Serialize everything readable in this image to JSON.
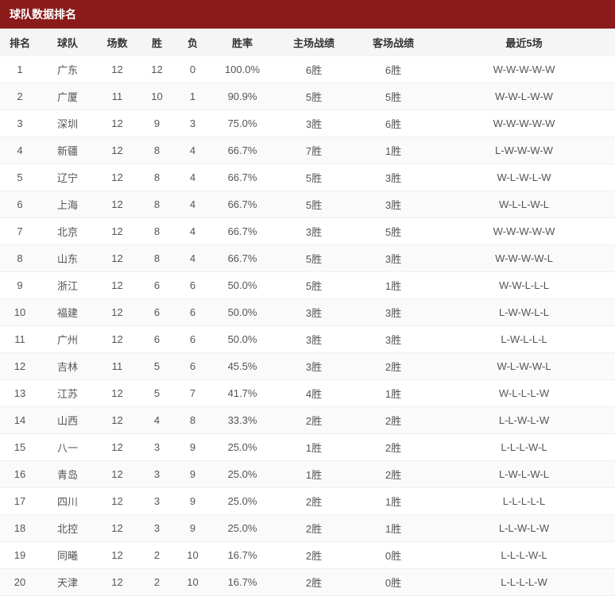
{
  "title": "球队数据排名",
  "columns": {
    "rank": "排名",
    "team": "球队",
    "games": "场数",
    "win": "胜",
    "loss": "负",
    "pct": "胜率",
    "home": "主场战绩",
    "away": "客场战绩",
    "last5": "最近5场"
  },
  "rows": [
    {
      "rank": "1",
      "team": "广东",
      "games": "12",
      "win": "12",
      "loss": "0",
      "pct": "100.0%",
      "home": "6胜",
      "away": "6胜",
      "last5": "W-W-W-W-W"
    },
    {
      "rank": "2",
      "team": "广厦",
      "games": "11",
      "win": "10",
      "loss": "1",
      "pct": "90.9%",
      "home": "5胜",
      "away": "5胜",
      "last5": "W-W-L-W-W"
    },
    {
      "rank": "3",
      "team": "深圳",
      "games": "12",
      "win": "9",
      "loss": "3",
      "pct": "75.0%",
      "home": "3胜",
      "away": "6胜",
      "last5": "W-W-W-W-W"
    },
    {
      "rank": "4",
      "team": "新疆",
      "games": "12",
      "win": "8",
      "loss": "4",
      "pct": "66.7%",
      "home": "7胜",
      "away": "1胜",
      "last5": "L-W-W-W-W"
    },
    {
      "rank": "5",
      "team": "辽宁",
      "games": "12",
      "win": "8",
      "loss": "4",
      "pct": "66.7%",
      "home": "5胜",
      "away": "3胜",
      "last5": "W-L-W-L-W"
    },
    {
      "rank": "6",
      "team": "上海",
      "games": "12",
      "win": "8",
      "loss": "4",
      "pct": "66.7%",
      "home": "5胜",
      "away": "3胜",
      "last5": "W-L-L-W-L"
    },
    {
      "rank": "7",
      "team": "北京",
      "games": "12",
      "win": "8",
      "loss": "4",
      "pct": "66.7%",
      "home": "3胜",
      "away": "5胜",
      "last5": "W-W-W-W-W"
    },
    {
      "rank": "8",
      "team": "山东",
      "games": "12",
      "win": "8",
      "loss": "4",
      "pct": "66.7%",
      "home": "5胜",
      "away": "3胜",
      "last5": "W-W-W-W-L"
    },
    {
      "rank": "9",
      "team": "浙江",
      "games": "12",
      "win": "6",
      "loss": "6",
      "pct": "50.0%",
      "home": "5胜",
      "away": "1胜",
      "last5": "W-W-L-L-L"
    },
    {
      "rank": "10",
      "team": "福建",
      "games": "12",
      "win": "6",
      "loss": "6",
      "pct": "50.0%",
      "home": "3胜",
      "away": "3胜",
      "last5": "L-W-W-L-L"
    },
    {
      "rank": "11",
      "team": "广州",
      "games": "12",
      "win": "6",
      "loss": "6",
      "pct": "50.0%",
      "home": "3胜",
      "away": "3胜",
      "last5": "L-W-L-L-L"
    },
    {
      "rank": "12",
      "team": "吉林",
      "games": "11",
      "win": "5",
      "loss": "6",
      "pct": "45.5%",
      "home": "3胜",
      "away": "2胜",
      "last5": "W-L-W-W-L"
    },
    {
      "rank": "13",
      "team": "江苏",
      "games": "12",
      "win": "5",
      "loss": "7",
      "pct": "41.7%",
      "home": "4胜",
      "away": "1胜",
      "last5": "W-L-L-L-W"
    },
    {
      "rank": "14",
      "team": "山西",
      "games": "12",
      "win": "4",
      "loss": "8",
      "pct": "33.3%",
      "home": "2胜",
      "away": "2胜",
      "last5": "L-L-W-L-W"
    },
    {
      "rank": "15",
      "team": "八一",
      "games": "12",
      "win": "3",
      "loss": "9",
      "pct": "25.0%",
      "home": "1胜",
      "away": "2胜",
      "last5": "L-L-L-W-L"
    },
    {
      "rank": "16",
      "team": "青岛",
      "games": "12",
      "win": "3",
      "loss": "9",
      "pct": "25.0%",
      "home": "1胜",
      "away": "2胜",
      "last5": "L-W-L-W-L"
    },
    {
      "rank": "17",
      "team": "四川",
      "games": "12",
      "win": "3",
      "loss": "9",
      "pct": "25.0%",
      "home": "2胜",
      "away": "1胜",
      "last5": "L-L-L-L-L"
    },
    {
      "rank": "18",
      "team": "北控",
      "games": "12",
      "win": "3",
      "loss": "9",
      "pct": "25.0%",
      "home": "2胜",
      "away": "1胜",
      "last5": "L-L-W-L-W"
    },
    {
      "rank": "19",
      "team": "同曦",
      "games": "12",
      "win": "2",
      "loss": "10",
      "pct": "16.7%",
      "home": "2胜",
      "away": "0胜",
      "last5": "L-L-L-W-L"
    },
    {
      "rank": "20",
      "team": "天津",
      "games": "12",
      "win": "2",
      "loss": "10",
      "pct": "16.7%",
      "home": "2胜",
      "away": "0胜",
      "last5": "L-L-L-L-W"
    }
  ]
}
